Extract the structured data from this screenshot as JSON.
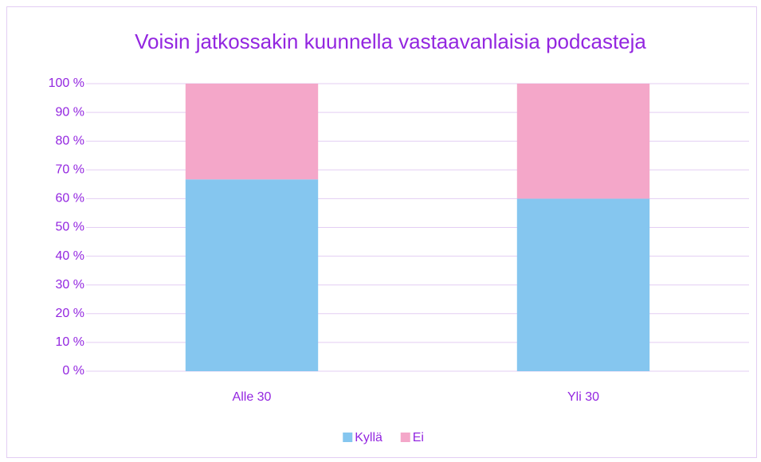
{
  "chart_data": {
    "type": "stacked_bar",
    "title": "Voisin jatkossakin kuunnella vastaavanlaisia podcasteja",
    "categories": [
      "Alle 30",
      "Yli 30"
    ],
    "series": [
      {
        "name": "Kyllä",
        "color": "#85c6ef",
        "values": [
          66.7,
          60
        ]
      },
      {
        "name": "Ei",
        "color": "#f4a7c9",
        "values": [
          33.3,
          40
        ]
      }
    ],
    "ylim": [
      0,
      100
    ],
    "yticks": [
      {
        "value": 0,
        "label": "0 %"
      },
      {
        "value": 10,
        "label": "10 %"
      },
      {
        "value": 20,
        "label": "20 %"
      },
      {
        "value": 30,
        "label": "30 %"
      },
      {
        "value": 40,
        "label": "40 %"
      },
      {
        "value": 50,
        "label": "50 %"
      },
      {
        "value": 60,
        "label": "60 %"
      },
      {
        "value": 70,
        "label": "70 %"
      },
      {
        "value": 80,
        "label": "80 %"
      },
      {
        "value": 90,
        "label": "90 %"
      },
      {
        "value": 100,
        "label": "100 %"
      }
    ],
    "grid": true,
    "legend": "bottom"
  }
}
